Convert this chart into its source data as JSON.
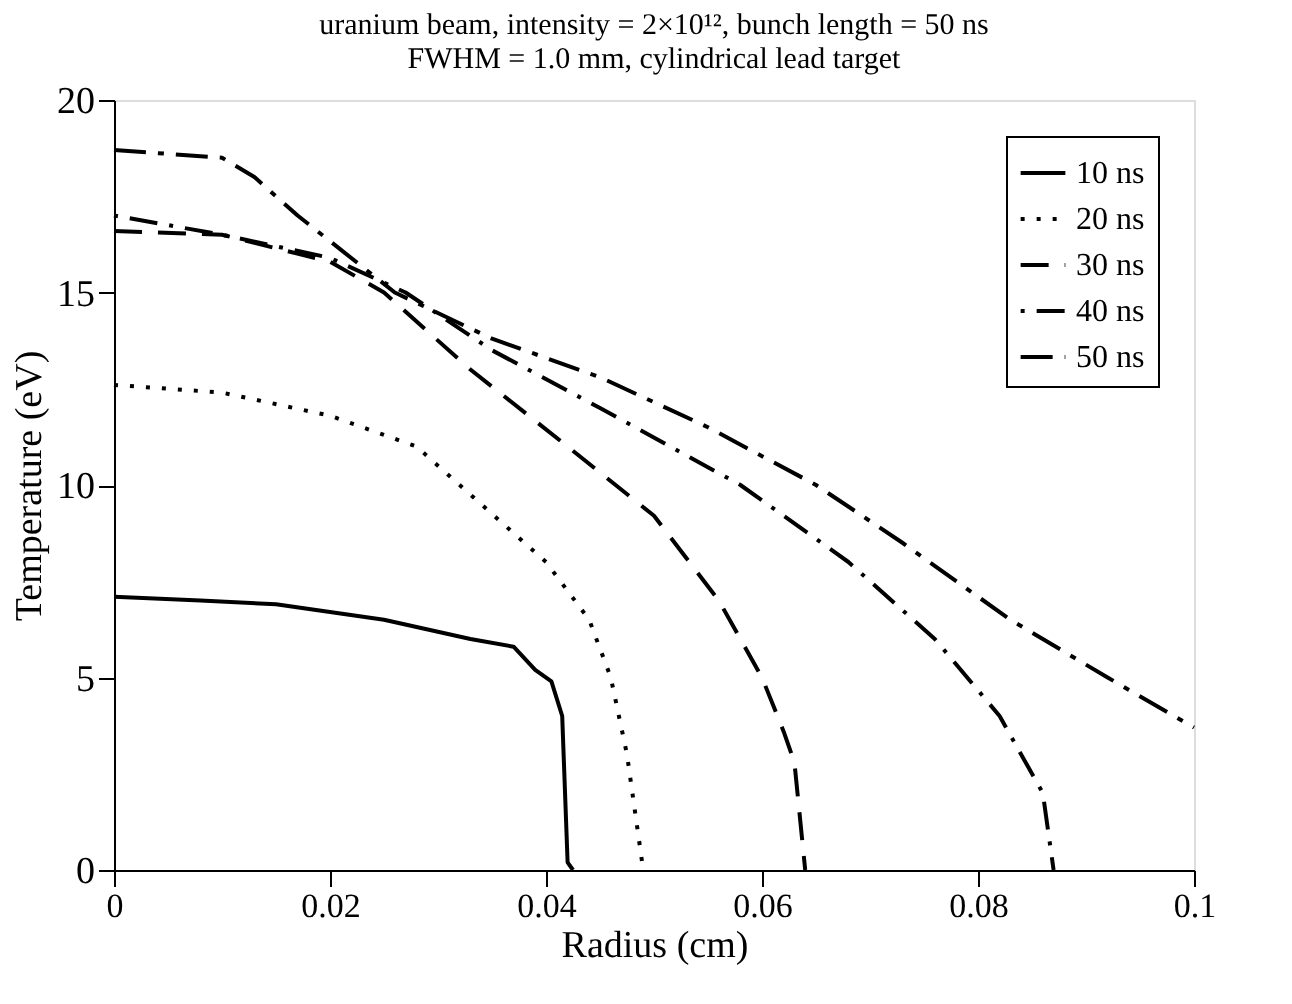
{
  "chart_data": {
    "type": "line",
    "title": [
      "uranium beam,  intensity = 2×10¹², bunch length = 50 ns",
      "FWHM = 1.0 mm, cylindrical lead target"
    ],
    "xlabel": "Radius (cm)",
    "ylabel": "Temperature (eV)",
    "xlim": [
      0,
      0.1
    ],
    "xticks": [
      0,
      0.02,
      0.04,
      0.06,
      0.08,
      0.1
    ],
    "ylim": [
      0,
      20
    ],
    "yticks": [
      0,
      5,
      10,
      15,
      20
    ],
    "grid": false,
    "legend": "top right",
    "marker": "none",
    "series": [
      {
        "name": "10 ns",
        "color": "#000000",
        "line_style": "solid",
        "x": [
          0,
          0.008,
          0.015,
          0.025,
          0.033,
          0.037,
          0.039,
          0.0405,
          0.0415,
          0.042,
          0.0425
        ],
        "values": [
          7.1,
          7.0,
          6.9,
          6.5,
          6.0,
          5.8,
          5.2,
          4.9,
          4.0,
          0.2,
          0
        ]
      },
      {
        "name": "20 ns",
        "color": "#000000",
        "line_style": "dotted",
        "x": [
          0,
          0.01,
          0.02,
          0.028,
          0.034,
          0.04,
          0.044,
          0.046,
          0.0475,
          0.0485,
          0.049
        ],
        "values": [
          12.6,
          12.4,
          11.8,
          11.0,
          9.5,
          8.0,
          6.5,
          5.0,
          3.0,
          1.0,
          0
        ]
      },
      {
        "name": "30 ns",
        "color": "#000000",
        "line_style": "dashed",
        "x": [
          0,
          0.01,
          0.02,
          0.025,
          0.033,
          0.042,
          0.05,
          0.056,
          0.06,
          0.062,
          0.063,
          0.064
        ],
        "values": [
          16.6,
          16.5,
          15.8,
          15.0,
          13.0,
          11.0,
          9.2,
          7.0,
          5.0,
          3.6,
          2.8,
          0
        ]
      },
      {
        "name": "40 ns",
        "color": "#000000",
        "line_style": "dashdot",
        "x": [
          0,
          0.01,
          0.02,
          0.027,
          0.035,
          0.045,
          0.058,
          0.068,
          0.076,
          0.082,
          0.085,
          0.086,
          0.087
        ],
        "values": [
          17.0,
          16.5,
          15.9,
          15.0,
          13.5,
          12.0,
          10.0,
          8.0,
          6.0,
          4.0,
          2.5,
          2.0,
          0
        ]
      },
      {
        "name": "50 ns",
        "color": "#000000",
        "line_style": "longdashdot",
        "x": [
          0,
          0.005,
          0.01,
          0.013,
          0.017,
          0.026,
          0.035,
          0.045,
          0.055,
          0.065,
          0.073,
          0.083,
          0.092,
          0.1
        ],
        "values": [
          18.7,
          18.6,
          18.5,
          18.0,
          17.0,
          15.0,
          13.8,
          12.8,
          11.5,
          10.0,
          8.5,
          6.5,
          5.0,
          3.7
        ]
      }
    ]
  }
}
